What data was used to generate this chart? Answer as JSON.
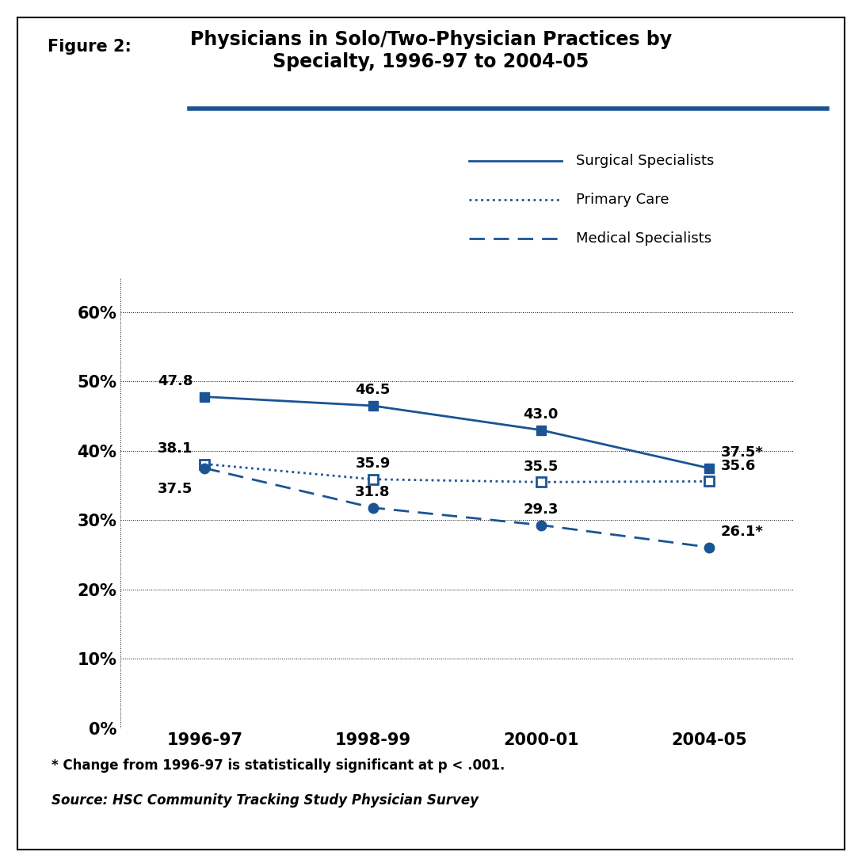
{
  "title_line1": "Physicians in Solo/Two-Physician Practices by",
  "title_line2": "Specialty, 1996-97 to 2004-05",
  "figure_label": "Figure 2:",
  "x_labels": [
    "1996-97",
    "1998-99",
    "2000-01",
    "2004-05"
  ],
  "x_positions": [
    0,
    1,
    2,
    3
  ],
  "surgical_specialists": [
    47.8,
    46.5,
    43.0,
    37.5
  ],
  "primary_care": [
    38.1,
    35.9,
    35.5,
    35.6
  ],
  "medical_specialists": [
    37.5,
    31.8,
    29.3,
    26.1
  ],
  "surgical_label": "Surgical Specialists",
  "primary_label": "Primary Care",
  "medical_label": "Medical Specialists",
  "line_color": "#1a5494",
  "ylim": [
    0,
    65
  ],
  "yticks": [
    0,
    10,
    20,
    30,
    40,
    50,
    60
  ],
  "ytick_labels": [
    "0%",
    "10%",
    "20%",
    "30%",
    "40%",
    "50%",
    "60%"
  ],
  "footnote": "* Change from 1996-97 is statistically significant at p < .001.",
  "source": "Source: HSC Community Tracking Study Physician Survey",
  "background_color": "#ffffff",
  "title_fontsize": 17,
  "tick_fontsize": 15,
  "annot_fontsize": 13,
  "legend_fontsize": 13,
  "surgical_annot": [
    "47.8",
    "46.5",
    "43.0",
    "37.5*"
  ],
  "primary_annot": [
    "38.1",
    "35.9",
    "35.5",
    "35.6"
  ],
  "medical_annot": [
    "37.5",
    "31.8",
    "29.3",
    "26.1*"
  ]
}
